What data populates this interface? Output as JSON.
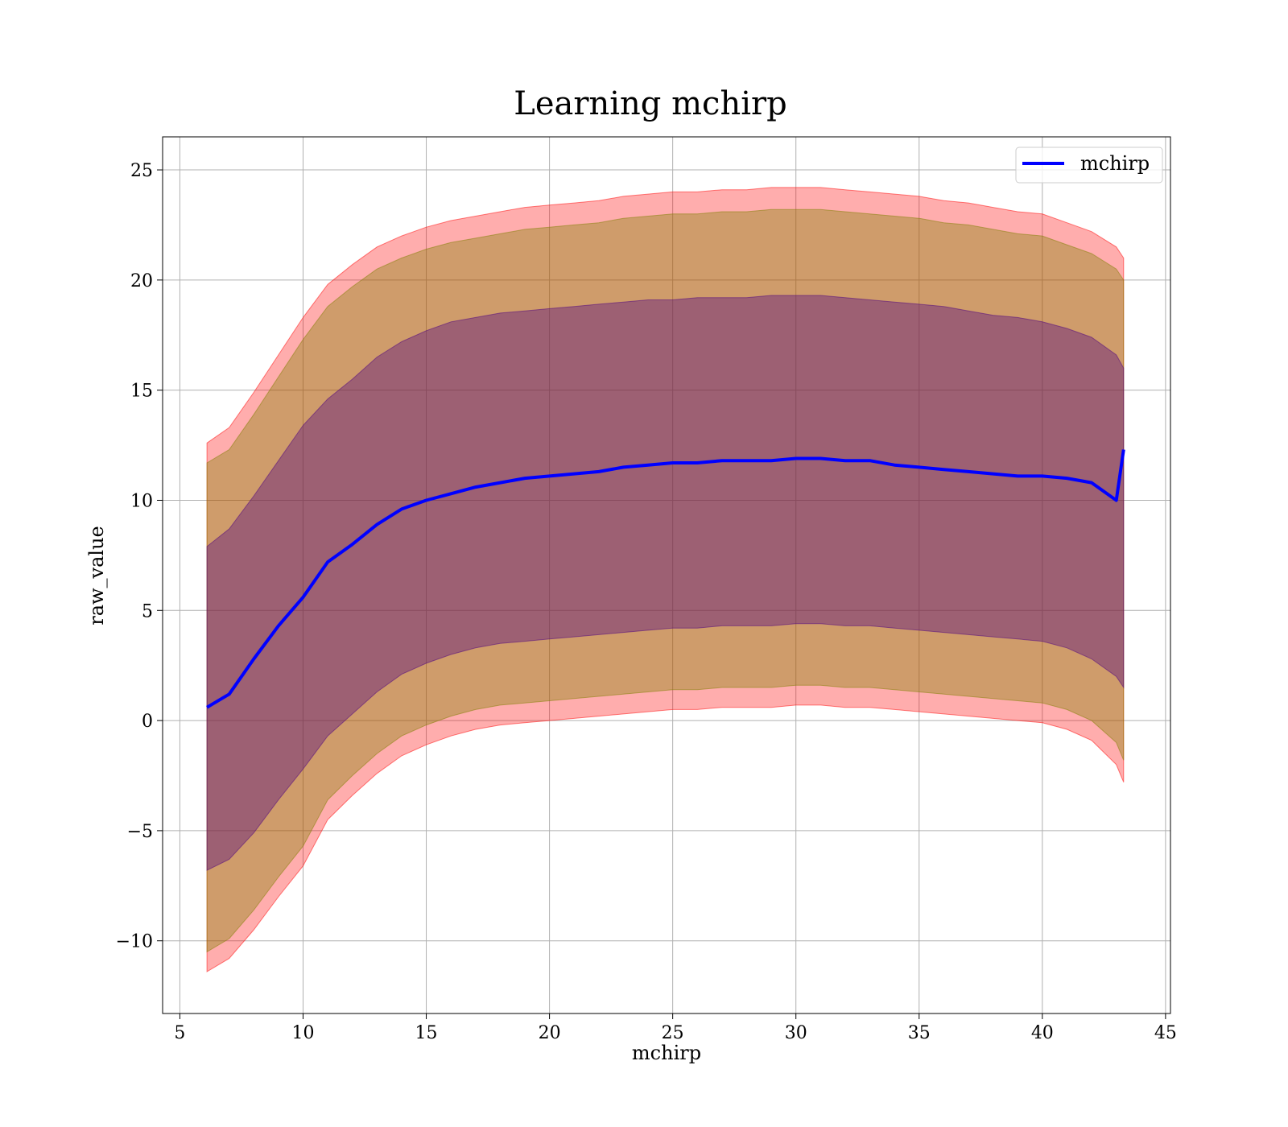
{
  "chart_data": {
    "type": "area",
    "title": "Learning mchirp",
    "xlabel": "mchirp",
    "ylabel": "raw_value",
    "xlim": [
      4.3,
      45.2
    ],
    "ylim": [
      -13.3,
      26.5
    ],
    "xticks": [
      5,
      10,
      15,
      20,
      25,
      30,
      35,
      40,
      45
    ],
    "yticks": [
      -10,
      -5,
      0,
      5,
      10,
      15,
      20,
      25
    ],
    "xtick_labels": [
      "5",
      "10",
      "15",
      "20",
      "25",
      "30",
      "35",
      "40",
      "45"
    ],
    "ytick_labels": [
      "−10",
      "−5",
      "0",
      "5",
      "10",
      "15",
      "20",
      "25"
    ],
    "grid": true,
    "legend": {
      "position": "top-right",
      "entries": [
        {
          "name": "mchirp",
          "color": "#0000ff"
        }
      ]
    },
    "x": [
      6.1,
      7,
      8,
      9,
      10,
      11,
      12,
      13,
      14,
      15,
      16,
      17,
      18,
      19,
      20,
      21,
      22,
      23,
      24,
      25,
      26,
      27,
      28,
      29,
      30,
      31,
      32,
      33,
      34,
      35,
      36,
      37,
      38,
      39,
      40,
      41,
      42,
      43,
      43.3
    ],
    "series": [
      {
        "name": "mchirp",
        "color": "#0000ff",
        "values": [
          0.6,
          1.2,
          2.8,
          4.3,
          5.6,
          7.2,
          8.0,
          8.9,
          9.6,
          10.0,
          10.3,
          10.6,
          10.8,
          11.0,
          11.1,
          11.2,
          11.3,
          11.5,
          11.6,
          11.7,
          11.7,
          11.8,
          11.8,
          11.8,
          11.9,
          11.9,
          11.8,
          11.8,
          11.6,
          11.5,
          11.4,
          11.3,
          11.2,
          11.1,
          11.1,
          11.0,
          10.8,
          10.0,
          12.3
        ]
      }
    ],
    "bands": [
      {
        "color": "#ff0000",
        "opacity": 0.32,
        "upper": [
          12.6,
          13.3,
          14.9,
          16.6,
          18.3,
          19.8,
          20.7,
          21.5,
          22.0,
          22.4,
          22.7,
          22.9,
          23.1,
          23.3,
          23.4,
          23.5,
          23.6,
          23.8,
          23.9,
          24.0,
          24.0,
          24.1,
          24.1,
          24.2,
          24.2,
          24.2,
          24.1,
          24.0,
          23.9,
          23.8,
          23.6,
          23.5,
          23.3,
          23.1,
          23.0,
          22.6,
          22.2,
          21.5,
          21.0
        ],
        "lower": [
          -11.4,
          -10.8,
          -9.5,
          -8.0,
          -6.6,
          -4.5,
          -3.4,
          -2.4,
          -1.6,
          -1.1,
          -0.7,
          -0.4,
          -0.2,
          -0.1,
          0.0,
          0.1,
          0.2,
          0.3,
          0.4,
          0.5,
          0.5,
          0.6,
          0.6,
          0.6,
          0.7,
          0.7,
          0.6,
          0.6,
          0.5,
          0.4,
          0.3,
          0.2,
          0.1,
          0.0,
          -0.1,
          -0.4,
          -0.9,
          -2.0,
          -2.8
        ]
      },
      {
        "color": "#808000",
        "opacity": 0.38,
        "upper": [
          11.7,
          12.3,
          13.9,
          15.6,
          17.3,
          18.8,
          19.7,
          20.5,
          21.0,
          21.4,
          21.7,
          21.9,
          22.1,
          22.3,
          22.4,
          22.5,
          22.6,
          22.8,
          22.9,
          23.0,
          23.0,
          23.1,
          23.1,
          23.2,
          23.2,
          23.2,
          23.1,
          23.0,
          22.9,
          22.8,
          22.6,
          22.5,
          22.3,
          22.1,
          22.0,
          21.6,
          21.2,
          20.5,
          20.0
        ],
        "lower": [
          -10.5,
          -9.9,
          -8.6,
          -7.1,
          -5.7,
          -3.6,
          -2.5,
          -1.5,
          -0.7,
          -0.2,
          0.2,
          0.5,
          0.7,
          0.8,
          0.9,
          1.0,
          1.1,
          1.2,
          1.3,
          1.4,
          1.4,
          1.5,
          1.5,
          1.5,
          1.6,
          1.6,
          1.5,
          1.5,
          1.4,
          1.3,
          1.2,
          1.1,
          1.0,
          0.9,
          0.8,
          0.5,
          0.0,
          -1.0,
          -1.8
        ]
      },
      {
        "color": "#4b0082",
        "opacity": 0.38,
        "upper": [
          7.9,
          8.7,
          10.2,
          11.8,
          13.4,
          14.6,
          15.5,
          16.5,
          17.2,
          17.7,
          18.1,
          18.3,
          18.5,
          18.6,
          18.7,
          18.8,
          18.9,
          19.0,
          19.1,
          19.1,
          19.2,
          19.2,
          19.2,
          19.3,
          19.3,
          19.3,
          19.2,
          19.1,
          19.0,
          18.9,
          18.8,
          18.6,
          18.4,
          18.3,
          18.1,
          17.8,
          17.4,
          16.6,
          16.0
        ],
        "lower": [
          -6.8,
          -6.3,
          -5.1,
          -3.6,
          -2.2,
          -0.7,
          0.3,
          1.3,
          2.1,
          2.6,
          3.0,
          3.3,
          3.5,
          3.6,
          3.7,
          3.8,
          3.9,
          4.0,
          4.1,
          4.2,
          4.2,
          4.3,
          4.3,
          4.3,
          4.4,
          4.4,
          4.3,
          4.3,
          4.2,
          4.1,
          4.0,
          3.9,
          3.8,
          3.7,
          3.6,
          3.3,
          2.8,
          2.0,
          1.5
        ]
      }
    ]
  }
}
